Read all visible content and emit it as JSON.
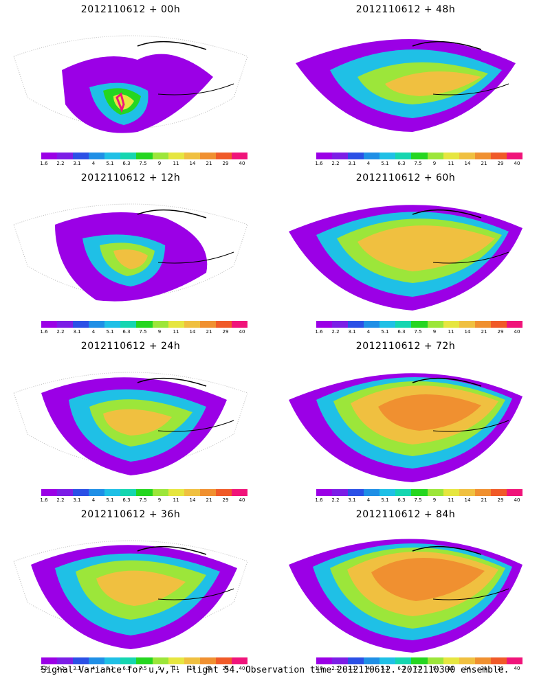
{
  "panels": [
    {
      "title": "2012110612 + 00h"
    },
    {
      "title": "2012110612 + 48h"
    },
    {
      "title": "2012110612 + 12h"
    },
    {
      "title": "2012110612 + 60h"
    },
    {
      "title": "2012110612 + 24h"
    },
    {
      "title": "2012110612 + 72h"
    },
    {
      "title": "2012110612 + 36h"
    },
    {
      "title": "2012110612 + 84h"
    }
  ],
  "colorbar": {
    "labels": [
      "1.6",
      "2.2",
      "3.1",
      "4",
      "5.1",
      "6.3",
      "7.5",
      "9",
      "11",
      "14",
      "21",
      "29",
      "40"
    ],
    "colors": [
      "#9b00e6",
      "#7c1ee6",
      "#2b50e6",
      "#1f8fe6",
      "#1fc0e6",
      "#15d6b0",
      "#25d620",
      "#9ce63a",
      "#e6e640",
      "#f0c040",
      "#f09030",
      "#f05a28",
      "#f0147a"
    ]
  },
  "footer": {
    "text": "Signal Variance for u,v,T. Flight 54. Observation time 2012110612. 2012110300 ensemble."
  }
}
